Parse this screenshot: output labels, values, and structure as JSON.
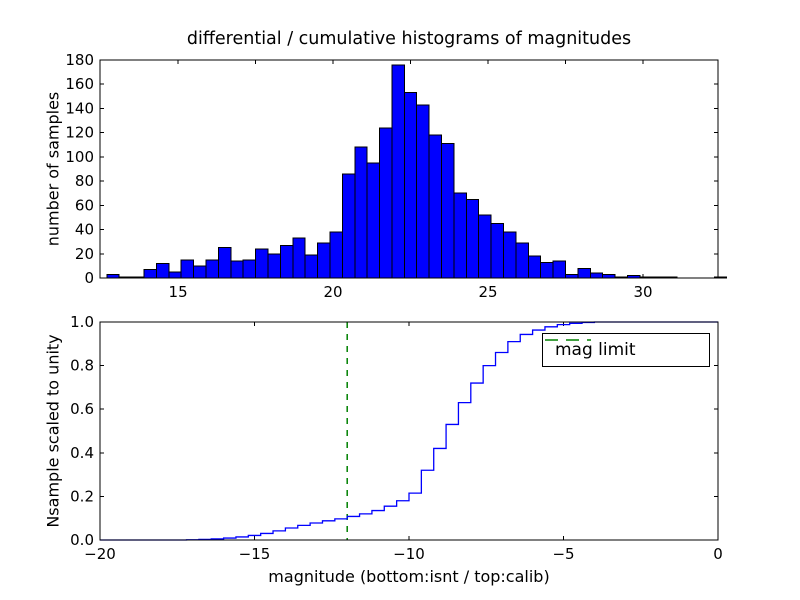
{
  "title": "differential / cumulative histograms of magnitudes",
  "colors": {
    "bar_fill": "#0000ff",
    "bar_edge": "#000000",
    "step_line": "#0000ff",
    "mag_limit_line": "#008000",
    "frame": "#000000",
    "background": "#ffffff"
  },
  "chart_data": [
    {
      "type": "bar",
      "name": "differential histogram of calibrated magnitudes",
      "ylabel": "number of samples",
      "xlim": [
        12.48,
        32.42
      ],
      "ylim": [
        0,
        180
      ],
      "bin_start": 12.7,
      "bin_width": 0.4,
      "values": [
        3,
        1,
        1,
        7,
        12,
        5,
        15,
        10,
        15,
        25,
        14,
        15,
        24,
        20,
        27,
        33,
        19,
        29,
        38,
        86,
        108,
        95,
        124,
        176,
        153,
        143,
        118,
        111,
        70,
        65,
        52,
        45,
        38,
        29,
        18,
        13,
        14,
        3,
        8,
        4,
        3,
        1,
        2,
        1,
        1,
        1,
        0,
        0,
        0,
        1
      ],
      "yticks": [
        0,
        20,
        40,
        60,
        80,
        100,
        120,
        140,
        160,
        180
      ],
      "xtick_first": 15,
      "xtick_step": 2.5,
      "xtick_count": 7,
      "xticklabels": [
        "15",
        "20",
        "25",
        "30"
      ],
      "grid": false
    },
    {
      "type": "step",
      "name": "cumulative histogram of instrumental magnitudes",
      "ylabel": "Nsample scaled to unity",
      "xlabel": "magnitude (bottom:isnt / top:calib)",
      "xlim": [
        -20,
        0
      ],
      "ylim": [
        0.0,
        1.0
      ],
      "bin_start": -20,
      "bin_width": 0.4,
      "cumulative": [
        0,
        0,
        0,
        0,
        0,
        0,
        0,
        0.001,
        0.003,
        0.005,
        0.009,
        0.014,
        0.021,
        0.03,
        0.042,
        0.055,
        0.067,
        0.078,
        0.088,
        0.097,
        0.108,
        0.12,
        0.135,
        0.155,
        0.18,
        0.215,
        0.32,
        0.42,
        0.53,
        0.63,
        0.72,
        0.8,
        0.86,
        0.91,
        0.943,
        0.963,
        0.978,
        0.988,
        0.994,
        0.998,
        1,
        1,
        1,
        1,
        1,
        1,
        1,
        1,
        1,
        1
      ],
      "xticks": [
        "−20",
        "−15",
        "−10",
        "−5",
        "0"
      ],
      "xtick_values": [
        -20,
        -15,
        -10,
        -5,
        0
      ],
      "yticks": [
        "0.0",
        "0.2",
        "0.4",
        "0.6",
        "0.8",
        "1.0"
      ],
      "ytick_values": [
        0.0,
        0.2,
        0.4,
        0.6,
        0.8,
        1.0
      ],
      "vline": {
        "x": -12,
        "style": "dashed",
        "color": "#008000"
      },
      "legend": {
        "label": "mag limit",
        "position": "upper right"
      },
      "grid": false
    }
  ]
}
